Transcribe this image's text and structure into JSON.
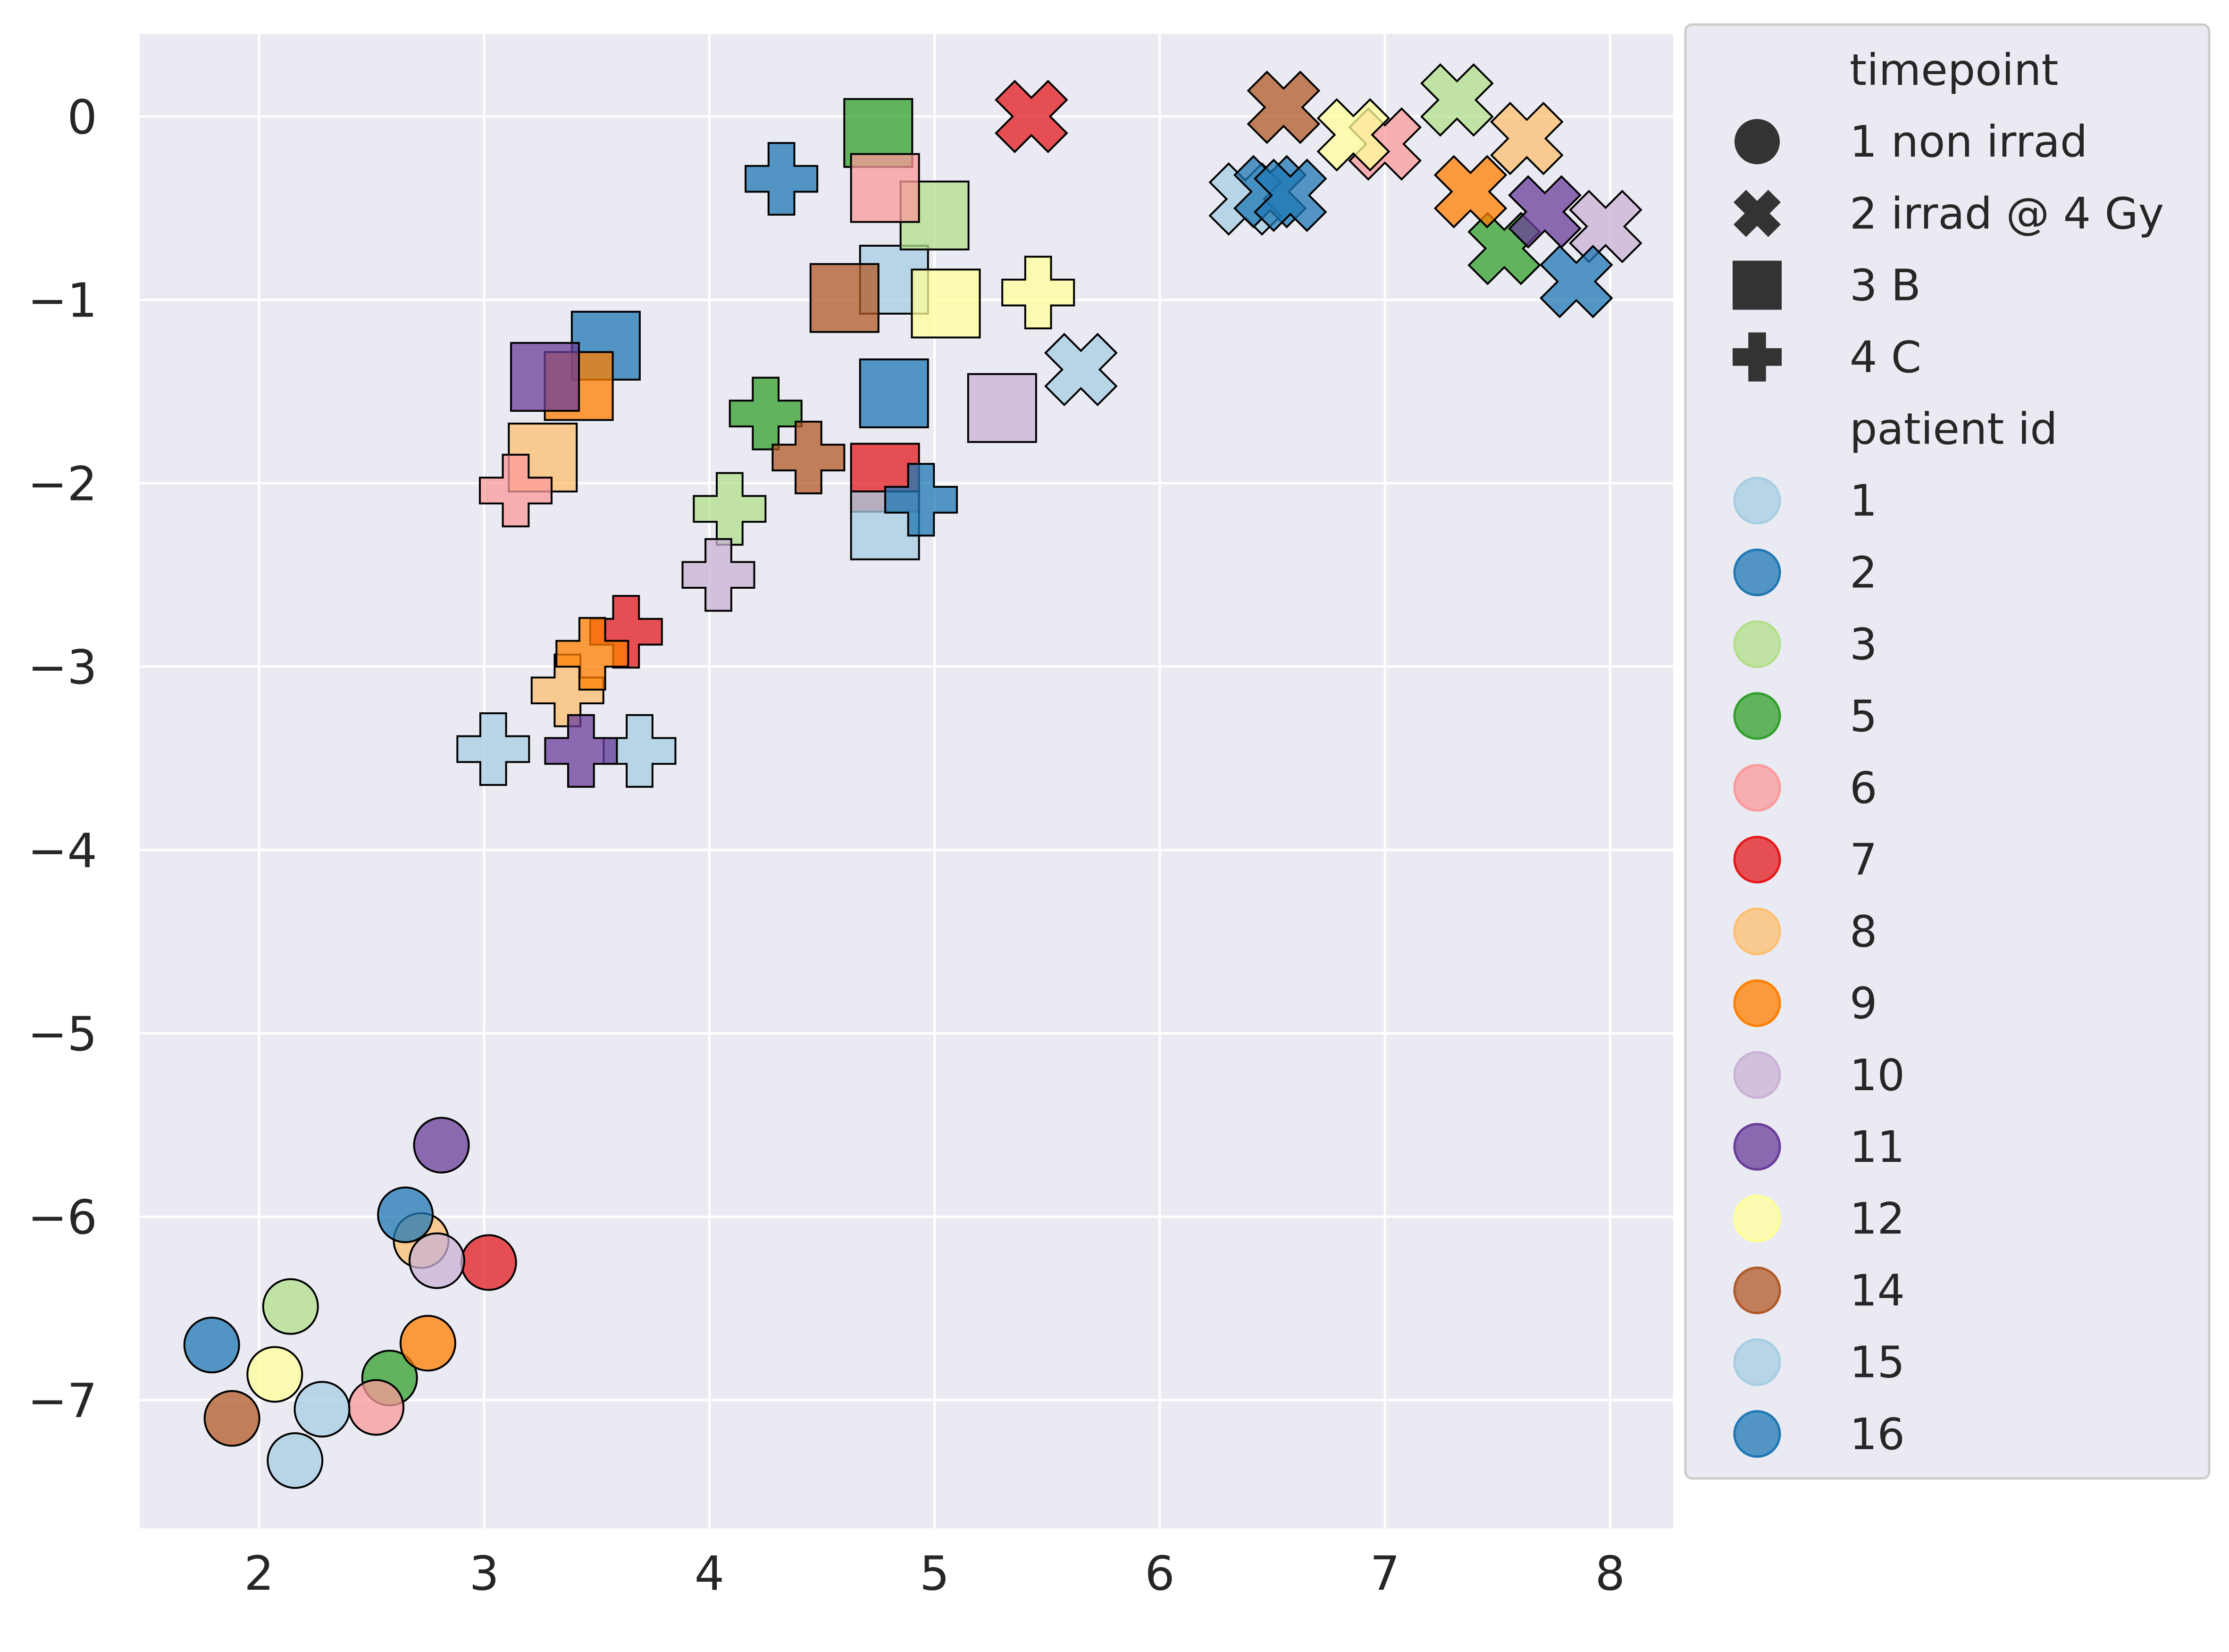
{
  "chart_data": {
    "type": "scatter",
    "title": "",
    "xlabel": "",
    "ylabel": "",
    "xlim": [
      1.47,
      8.28
    ],
    "ylim": [
      -7.7,
      0.45
    ],
    "xticks": [
      2,
      3,
      4,
      5,
      6,
      7,
      8
    ],
    "yticks": [
      0,
      -1,
      -2,
      -3,
      -4,
      -5,
      -6,
      -7
    ],
    "xtick_labels": [
      "2",
      "3",
      "4",
      "5",
      "6",
      "7",
      "8"
    ],
    "ytick_labels": [
      "0",
      "−1",
      "−2",
      "−3",
      "−4",
      "−5",
      "−6",
      "−7"
    ],
    "grid": true,
    "background": "#eaeaf2",
    "legend_position": "outside-right",
    "legend": {
      "timepoint_title": "timepoint",
      "timepoints": [
        {
          "label": "1 non irrad",
          "marker": "circle"
        },
        {
          "label": "2 irrad @ 4 Gy",
          "marker": "x"
        },
        {
          "label": "3 B",
          "marker": "square"
        },
        {
          "label": "4 C",
          "marker": "plus"
        }
      ],
      "patient_title": "patient id",
      "patients": [
        {
          "label": "1",
          "color": "#a6cee3"
        },
        {
          "label": "2",
          "color": "#1f78b4"
        },
        {
          "label": "3",
          "color": "#b2df8a"
        },
        {
          "label": "5",
          "color": "#33a02c"
        },
        {
          "label": "6",
          "color": "#fb9a99"
        },
        {
          "label": "7",
          "color": "#e31a1c"
        },
        {
          "label": "8",
          "color": "#fdbf6f"
        },
        {
          "label": "9",
          "color": "#ff7f00"
        },
        {
          "label": "10",
          "color": "#cab2d6"
        },
        {
          "label": "11",
          "color": "#6a3d9a"
        },
        {
          "label": "12",
          "color": "#ffff99"
        },
        {
          "label": "14",
          "color": "#b15928"
        },
        {
          "label": "15",
          "color": "#a6cee3"
        },
        {
          "label": "16",
          "color": "#1f78b4"
        }
      ]
    },
    "points": [
      {
        "tp": "1 non irrad",
        "pid": "1",
        "x": 2.16,
        "y": -7.33
      },
      {
        "tp": "1 non irrad",
        "pid": "2",
        "x": 1.79,
        "y": -6.7
      },
      {
        "tp": "1 non irrad",
        "pid": "3",
        "x": 2.14,
        "y": -6.49
      },
      {
        "tp": "1 non irrad",
        "pid": "5",
        "x": 2.58,
        "y": -6.88
      },
      {
        "tp": "1 non irrad",
        "pid": "6",
        "x": 2.52,
        "y": -7.04
      },
      {
        "tp": "1 non irrad",
        "pid": "7",
        "x": 3.02,
        "y": -6.25
      },
      {
        "tp": "1 non irrad",
        "pid": "8",
        "x": 2.72,
        "y": -6.13
      },
      {
        "tp": "1 non irrad",
        "pid": "9",
        "x": 2.75,
        "y": -6.69
      },
      {
        "tp": "1 non irrad",
        "pid": "10",
        "x": 2.79,
        "y": -6.24
      },
      {
        "tp": "1 non irrad",
        "pid": "11",
        "x": 2.81,
        "y": -5.61
      },
      {
        "tp": "1 non irrad",
        "pid": "12",
        "x": 2.07,
        "y": -6.86
      },
      {
        "tp": "1 non irrad",
        "pid": "14",
        "x": 1.88,
        "y": -7.1
      },
      {
        "tp": "1 non irrad",
        "pid": "15",
        "x": 2.28,
        "y": -7.05
      },
      {
        "tp": "1 non irrad",
        "pid": "16",
        "x": 2.65,
        "y": -5.99
      },
      {
        "tp": "2 irrad @ 4 Gy",
        "pid": "1",
        "x": 6.38,
        "y": -0.45
      },
      {
        "tp": "2 irrad @ 4 Gy",
        "pid": "2",
        "x": 6.49,
        "y": -0.41
      },
      {
        "tp": "2 irrad @ 4 Gy",
        "pid": "3",
        "x": 7.32,
        "y": 0.09
      },
      {
        "tp": "2 irrad @ 4 Gy",
        "pid": "5",
        "x": 7.53,
        "y": -0.72
      },
      {
        "tp": "2 irrad @ 4 Gy",
        "pid": "6",
        "x": 7.0,
        "y": -0.15
      },
      {
        "tp": "2 irrad @ 4 Gy",
        "pid": "7",
        "x": 5.43,
        "y": 0.0
      },
      {
        "tp": "2 irrad @ 4 Gy",
        "pid": "8",
        "x": 7.63,
        "y": -0.12
      },
      {
        "tp": "2 irrad @ 4 Gy",
        "pid": "9",
        "x": 7.38,
        "y": -0.41
      },
      {
        "tp": "2 irrad @ 4 Gy",
        "pid": "10",
        "x": 7.98,
        "y": -0.6
      },
      {
        "tp": "2 irrad @ 4 Gy",
        "pid": "11",
        "x": 7.71,
        "y": -0.52
      },
      {
        "tp": "2 irrad @ 4 Gy",
        "pid": "12",
        "x": 6.86,
        "y": -0.1
      },
      {
        "tp": "2 irrad @ 4 Gy",
        "pid": "14",
        "x": 6.55,
        "y": 0.05
      },
      {
        "tp": "2 irrad @ 4 Gy",
        "pid": "15",
        "x": 5.65,
        "y": -1.38
      },
      {
        "tp": "2 irrad @ 4 Gy",
        "pid": "16",
        "x": 6.58,
        "y": -0.43
      },
      {
        "tp": "2 irrad @ 4 Gy",
        "pid": "16",
        "x": 7.85,
        "y": -0.9
      },
      {
        "tp": "3 B",
        "pid": "1",
        "x": 4.82,
        "y": -0.89
      },
      {
        "tp": "3 B",
        "pid": "2",
        "x": 3.54,
        "y": -1.25
      },
      {
        "tp": "3 B",
        "pid": "3",
        "x": 5.0,
        "y": -0.54
      },
      {
        "tp": "3 B",
        "pid": "5",
        "x": 4.75,
        "y": -0.09
      },
      {
        "tp": "3 B",
        "pid": "6",
        "x": 4.78,
        "y": -0.39
      },
      {
        "tp": "3 B",
        "pid": "7",
        "x": 4.78,
        "y": -1.97
      },
      {
        "tp": "3 B",
        "pid": "8",
        "x": 3.26,
        "y": -1.86
      },
      {
        "tp": "3 B",
        "pid": "9",
        "x": 3.42,
        "y": -1.47
      },
      {
        "tp": "3 B",
        "pid": "10",
        "x": 5.3,
        "y": -1.59
      },
      {
        "tp": "3 B",
        "pid": "11",
        "x": 3.27,
        "y": -1.42
      },
      {
        "tp": "3 B",
        "pid": "12",
        "x": 5.05,
        "y": -1.02
      },
      {
        "tp": "3 B",
        "pid": "14",
        "x": 4.6,
        "y": -0.99
      },
      {
        "tp": "3 B",
        "pid": "15",
        "x": 4.78,
        "y": -2.23
      },
      {
        "tp": "3 B",
        "pid": "16",
        "x": 4.82,
        "y": -1.51
      },
      {
        "tp": "4 C",
        "pid": "1",
        "x": 3.69,
        "y": -3.46
      },
      {
        "tp": "4 C",
        "pid": "2",
        "x": 4.32,
        "y": -0.34
      },
      {
        "tp": "4 C",
        "pid": "3",
        "x": 4.09,
        "y": -2.14
      },
      {
        "tp": "4 C",
        "pid": "5",
        "x": 4.25,
        "y": -1.62
      },
      {
        "tp": "4 C",
        "pid": "6",
        "x": 3.14,
        "y": -2.04
      },
      {
        "tp": "4 C",
        "pid": "7",
        "x": 3.63,
        "y": -2.81
      },
      {
        "tp": "4 C",
        "pid": "8",
        "x": 3.37,
        "y": -3.13
      },
      {
        "tp": "4 C",
        "pid": "9",
        "x": 3.48,
        "y": -2.93
      },
      {
        "tp": "4 C",
        "pid": "10",
        "x": 4.04,
        "y": -2.5
      },
      {
        "tp": "4 C",
        "pid": "11",
        "x": 3.43,
        "y": -3.46
      },
      {
        "tp": "4 C",
        "pid": "12",
        "x": 5.46,
        "y": -0.96
      },
      {
        "tp": "4 C",
        "pid": "14",
        "x": 4.44,
        "y": -1.86
      },
      {
        "tp": "4 C",
        "pid": "15",
        "x": 3.04,
        "y": -3.45
      },
      {
        "tp": "4 C",
        "pid": "16",
        "x": 4.94,
        "y": -2.09
      }
    ]
  }
}
